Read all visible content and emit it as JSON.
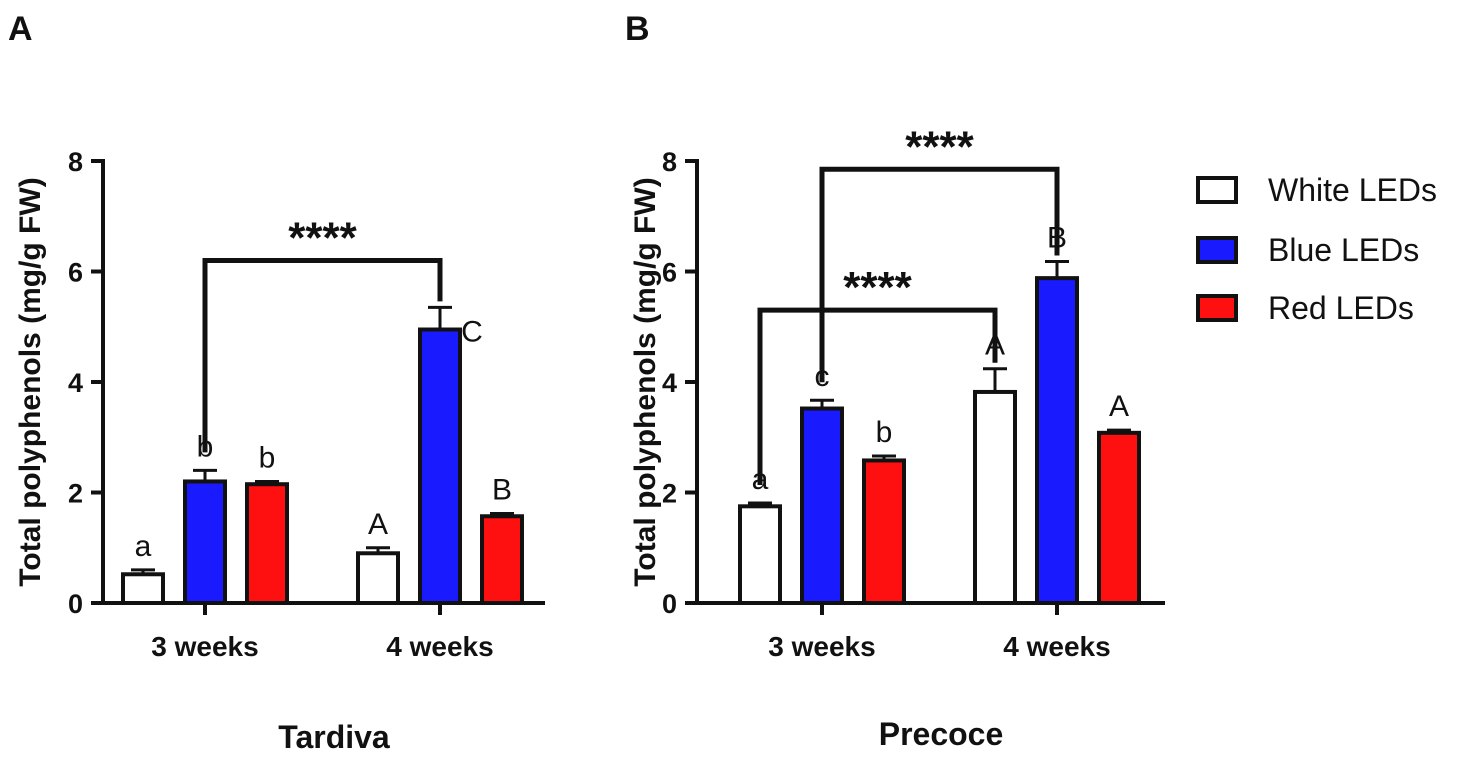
{
  "legend": [
    {
      "label": "White LEDs",
      "color": "#ffffff"
    },
    {
      "label": "Blue LEDs",
      "color": "#1a1aff"
    },
    {
      "label": "Red LEDs",
      "color": "#ff1010"
    }
  ],
  "chart_data": [
    {
      "type": "bar",
      "panel_label": "A",
      "title": "Tardiva",
      "xlabel": "Tardiva",
      "ylabel": "Total polyphenols (mg/g FW)",
      "ylim": [
        0,
        8
      ],
      "yticks": [
        "0",
        "2",
        "4",
        "6",
        "8"
      ],
      "categories": [
        "3 weeks",
        "4 weeks"
      ],
      "series": [
        {
          "name": "White LEDs",
          "values": [
            0.52,
            0.9
          ],
          "errors": [
            0.08,
            0.1
          ],
          "labels": [
            "a",
            "A"
          ]
        },
        {
          "name": "Blue LEDs",
          "values": [
            2.2,
            4.95
          ],
          "errors": [
            0.2,
            0.4
          ],
          "labels": [
            "b",
            "C"
          ]
        },
        {
          "name": "Red LEDs",
          "values": [
            2.15,
            1.57
          ],
          "errors": [
            0.05,
            0.05
          ],
          "labels": [
            "b",
            "B"
          ]
        }
      ],
      "significance": [
        {
          "label": "****",
          "from": {
            "category": 0,
            "series": 1
          },
          "to": {
            "category": 1,
            "series": 1
          },
          "bar_y": 6.2
        }
      ]
    },
    {
      "type": "bar",
      "panel_label": "B",
      "title": "Precoce",
      "xlabel": "Precoce",
      "ylabel": "Total polyphenols (mg/g FW)",
      "ylim": [
        0,
        8
      ],
      "yticks": [
        "0",
        "2",
        "4",
        "6",
        "8"
      ],
      "categories": [
        "3 weeks",
        "4 weeks"
      ],
      "series": [
        {
          "name": "White LEDs",
          "values": [
            1.75,
            3.82
          ],
          "errors": [
            0.06,
            0.42
          ],
          "labels": [
            "a",
            "A"
          ]
        },
        {
          "name": "Blue LEDs",
          "values": [
            3.52,
            5.88
          ],
          "errors": [
            0.15,
            0.3
          ],
          "labels": [
            "c",
            "B"
          ]
        },
        {
          "name": "Red LEDs",
          "values": [
            2.58,
            3.08
          ],
          "errors": [
            0.08,
            0.05
          ],
          "labels": [
            "b",
            "A"
          ]
        }
      ],
      "significance": [
        {
          "label": "****",
          "from": {
            "category": 0,
            "series": 1
          },
          "to": {
            "category": 1,
            "series": 1
          },
          "bar_y": 7.85
        },
        {
          "label": "****",
          "from": {
            "category": 0,
            "series": 0
          },
          "to": {
            "category": 1,
            "series": 0
          },
          "bar_y": 5.3
        }
      ]
    }
  ]
}
